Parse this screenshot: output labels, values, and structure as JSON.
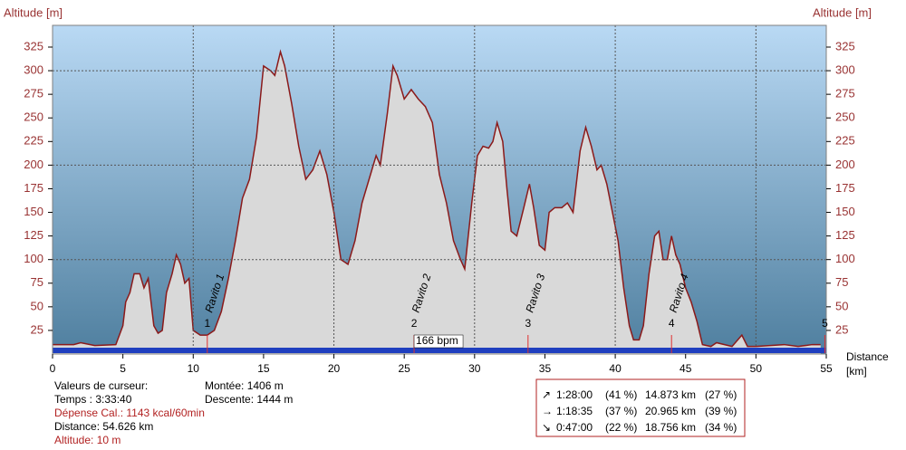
{
  "chart_data": {
    "type": "area",
    "ylabel": "Altitude [m]",
    "y2label": "Altitude [m]",
    "xlabel": "Distance",
    "xunit": "[km]",
    "x": [
      0,
      1.5,
      2,
      3,
      4.5,
      5,
      5.2,
      5.5,
      5.8,
      6.2,
      6.5,
      6.8,
      7.2,
      7.5,
      7.8,
      8.1,
      8.5,
      8.8,
      9.1,
      9.4,
      9.7,
      10,
      10.5,
      11,
      11.5,
      12,
      12.5,
      13,
      13.5,
      14,
      14.5,
      15,
      15.5,
      15.8,
      16.2,
      16.5,
      17,
      17.5,
      18,
      18.5,
      19,
      19.5,
      20,
      20.5,
      21,
      21.5,
      22,
      22.5,
      23,
      23.3,
      23.8,
      24.2,
      24.5,
      25,
      25.5,
      26,
      26.5,
      27,
      27.5,
      28,
      28.5,
      29,
      29.3,
      29.8,
      30.2,
      30.6,
      31,
      31.3,
      31.6,
      32,
      32.3,
      32.6,
      33,
      33.5,
      33.9,
      34.2,
      34.6,
      35,
      35.3,
      35.7,
      36.2,
      36.6,
      37,
      37.5,
      37.9,
      38.3,
      38.7,
      39,
      39.4,
      39.8,
      40.2,
      40.6,
      41,
      41.3,
      41.7,
      42,
      42.4,
      42.8,
      43.1,
      43.4,
      43.7,
      44,
      44.3,
      44.6,
      45,
      45.4,
      45.8,
      46.2,
      46.8,
      47.2,
      48.3,
      49,
      49.4,
      50,
      52,
      53,
      54,
      54.6
    ],
    "values": [
      10,
      10,
      12,
      9,
      10,
      30,
      55,
      65,
      85,
      85,
      70,
      80,
      30,
      22,
      25,
      65,
      85,
      105,
      95,
      75,
      80,
      25,
      20,
      20,
      25,
      45,
      80,
      120,
      165,
      185,
      230,
      305,
      300,
      295,
      320,
      305,
      265,
      220,
      185,
      195,
      215,
      190,
      150,
      100,
      95,
      120,
      160,
      185,
      210,
      200,
      255,
      305,
      295,
      270,
      280,
      270,
      262,
      245,
      190,
      160,
      120,
      100,
      90,
      160,
      210,
      220,
      218,
      225,
      245,
      225,
      175,
      130,
      125,
      155,
      180,
      155,
      115,
      110,
      150,
      155,
      155,
      160,
      150,
      215,
      240,
      220,
      195,
      200,
      180,
      150,
      120,
      70,
      30,
      15,
      15,
      30,
      85,
      125,
      130,
      100,
      100,
      125,
      105,
      95,
      70,
      55,
      35,
      10,
      8,
      12,
      8,
      20,
      8,
      8,
      10,
      8,
      10,
      10
    ],
    "color": "#8b1a1a",
    "fill": "#d9d9d9",
    "xlim": [
      0,
      55
    ],
    "xticks": [
      0,
      5,
      10,
      15,
      20,
      25,
      30,
      35,
      40,
      45,
      50,
      55
    ],
    "ylim": [
      0,
      348
    ],
    "yticks": [
      25,
      50,
      75,
      100,
      125,
      150,
      175,
      200,
      225,
      250,
      275,
      300,
      325
    ],
    "y2lim": [
      0,
      348
    ],
    "y2ticks": [
      25,
      50,
      75,
      100,
      125,
      150,
      175,
      200,
      225,
      250,
      275,
      300,
      325
    ],
    "xgrid": [
      10,
      20,
      30,
      40,
      50
    ],
    "ygrid": [
      100,
      200,
      300
    ],
    "annotations": [
      {
        "x": 11,
        "number": "1",
        "label": "Ravito 1"
      },
      {
        "x": 25.7,
        "number": "2",
        "label": "Ravito 2"
      },
      {
        "x": 33.8,
        "number": "3",
        "label": "Ravito 3"
      },
      {
        "x": 44,
        "number": "4",
        "label": "Ravito 4"
      }
    ],
    "end_marker": {
      "x": 54.9,
      "number": "5"
    },
    "cursor": {
      "x": 25.7,
      "label": "166 bpm"
    }
  },
  "info": {
    "title": "Valeurs de curseur:",
    "time": "Temps : 3:33:40",
    "calories": "Dépense Cal.: 1143 kcal/60min",
    "distance": "Distance: 54.626 km",
    "altitude": "Altitude: 10 m",
    "climb": "Montée: 1406 m",
    "descent": "Descente: 1444 m"
  },
  "summary": [
    [
      "↗",
      "1:28:00",
      "(41 %)",
      "14.873 km",
      "(27 %)"
    ],
    [
      "→",
      "1:18:35",
      "(37 %)",
      "20.965 km",
      "(39 %)"
    ],
    [
      "↘",
      "0:47:00",
      "(22 %)",
      "18.756 km",
      "(34 %)"
    ]
  ]
}
